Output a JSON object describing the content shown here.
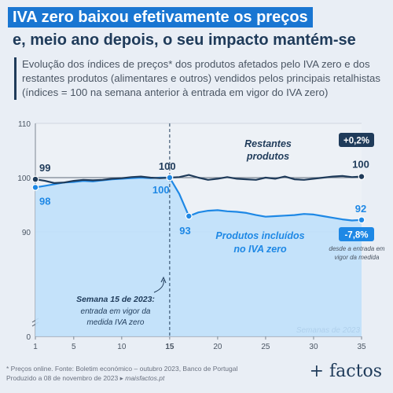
{
  "header": {
    "title_line1": "IVA zero baixou efetivamente os preços",
    "title_line2": "e, meio ano depois, o seu impacto mantém-se",
    "subtitle": "Evolução dos índices de preços* dos produtos afetados pelo IVA zero e dos restantes produtos (alimentares e outros) vendidos pelos principais retalhistas (índices = 100 na semana anterior à entrada em vigor do IVA zero)"
  },
  "chart_data": {
    "type": "line",
    "xlabel": "Semanas de 2023",
    "x_ticks": [
      1,
      5,
      10,
      15,
      20,
      25,
      30,
      35
    ],
    "y_ticks": [
      0,
      90,
      100,
      110
    ],
    "xlim": [
      1,
      35
    ],
    "ylim_broken_axis": [
      0,
      110
    ],
    "grid": "horizontal",
    "series": [
      {
        "name": "Restantes produtos",
        "color": "#1f3b5a",
        "x": [
          1,
          2,
          3,
          4,
          5,
          6,
          7,
          8,
          9,
          10,
          11,
          12,
          13,
          14,
          15,
          16,
          17,
          18,
          19,
          20,
          21,
          22,
          23,
          24,
          25,
          26,
          27,
          28,
          29,
          30,
          31,
          32,
          33,
          34,
          35
        ],
        "values": [
          99.7,
          99.4,
          99.0,
          99.1,
          99.4,
          99.6,
          99.5,
          99.6,
          99.8,
          99.9,
          100.1,
          100.2,
          100.0,
          99.9,
          100.0,
          100.1,
          100.5,
          100.0,
          99.6,
          99.8,
          100.1,
          99.8,
          99.7,
          99.6,
          100.0,
          99.8,
          100.2,
          99.7,
          99.6,
          99.8,
          100.0,
          100.2,
          100.3,
          100.1,
          100.2
        ],
        "start_label": "99",
        "mid_label": "100",
        "end_label": "100",
        "change_badge": "+0,2%",
        "series_label": "Restantes produtos"
      },
      {
        "name": "Produtos incluídos no IVA zero",
        "color": "#1e88e5",
        "x": [
          1,
          2,
          3,
          4,
          5,
          6,
          7,
          8,
          9,
          10,
          11,
          12,
          13,
          14,
          15,
          16,
          17,
          18,
          19,
          20,
          21,
          22,
          23,
          24,
          25,
          26,
          27,
          28,
          29,
          30,
          31,
          32,
          33,
          34,
          35
        ],
        "values": [
          98.2,
          98.5,
          98.8,
          99.1,
          99.2,
          99.4,
          99.3,
          99.5,
          99.7,
          99.8,
          99.9,
          100.0,
          99.9,
          100.0,
          100.0,
          97.0,
          92.9,
          93.6,
          93.9,
          94.0,
          93.8,
          93.7,
          93.5,
          93.1,
          92.8,
          92.9,
          93.0,
          93.1,
          93.3,
          93.2,
          92.9,
          92.6,
          92.3,
          92.1,
          92.2
        ],
        "start_label": "98",
        "mid_label": "100",
        "trough_label": "93",
        "end_label": "92",
        "change_badge": "-7,8%",
        "change_note": "desde a entrada em vigor da medida",
        "series_label": "Produtos incluídos no IVA zero"
      }
    ],
    "annotation": {
      "week": 15,
      "title": "Semana 15 de 2023:",
      "text": "entrada em vigor da medida IVA zero"
    }
  },
  "footer": {
    "source": "* Preços online. Fonte: Boletim económico – outubro 2023, Banco de Portugal",
    "produced": "Produzido a 08 de novembro de 2023 ▸",
    "site": "maisfactos.pt",
    "brand": "+ factos"
  },
  "colors": {
    "title_bg": "#1976d2",
    "dark": "#1f3b5a",
    "blue": "#1e88e5",
    "area": "#bfe0fb",
    "background": "#e9eef5"
  }
}
